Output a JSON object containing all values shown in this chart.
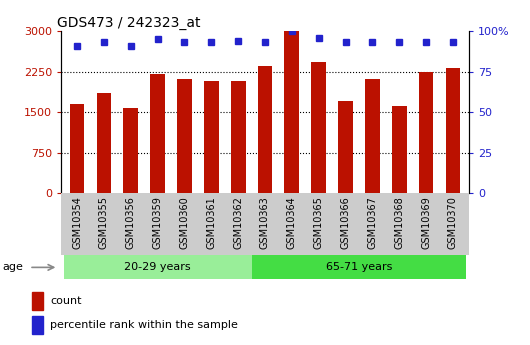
{
  "title": "GDS473 / 242323_at",
  "samples": [
    "GSM10354",
    "GSM10355",
    "GSM10356",
    "GSM10359",
    "GSM10360",
    "GSM10361",
    "GSM10362",
    "GSM10363",
    "GSM10364",
    "GSM10365",
    "GSM10366",
    "GSM10367",
    "GSM10368",
    "GSM10369",
    "GSM10370"
  ],
  "counts": [
    1650,
    1850,
    1580,
    2200,
    2120,
    2080,
    2080,
    2350,
    3000,
    2420,
    1700,
    2120,
    1620,
    2250,
    2320
  ],
  "percentile_ranks": [
    91,
    93,
    91,
    95,
    93,
    93,
    94,
    93,
    100,
    96,
    93,
    93,
    93,
    93,
    93
  ],
  "groups": [
    {
      "label": "20-29 years",
      "start": 0,
      "end": 7,
      "color": "#99ee99"
    },
    {
      "label": "65-71 years",
      "start": 7,
      "end": 15,
      "color": "#44dd44"
    }
  ],
  "ylim_left": [
    0,
    3000
  ],
  "ylim_right": [
    0,
    100
  ],
  "yticks_left": [
    0,
    750,
    1500,
    2250,
    3000
  ],
  "yticks_right": [
    0,
    25,
    50,
    75,
    100
  ],
  "bar_color": "#bb1100",
  "dot_color": "#2222cc",
  "bar_width": 0.55,
  "age_label": "age",
  "legend_count": "count",
  "legend_percentile": "percentile rank within the sample",
  "xticklabel_bg": "#cccccc",
  "plot_bg": "#ffffff"
}
